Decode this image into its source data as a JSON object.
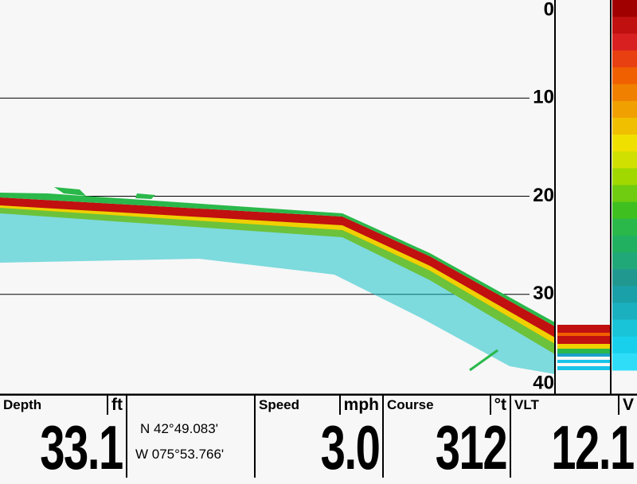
{
  "depth_scale": {
    "ticks": [
      0,
      10,
      20,
      30,
      40
    ],
    "max": 40
  },
  "readouts": {
    "depth": {
      "label": "Depth",
      "unit": "ft",
      "value": "33.1"
    },
    "position": {
      "lat": "N 42°49.083'",
      "lon": "W 075°53.766'"
    },
    "speed": {
      "label": "Speed",
      "unit": "mph",
      "value": "3.0"
    },
    "course": {
      "label": "Course",
      "unit": "°t",
      "value": "312"
    },
    "vlt": {
      "label": "VLT",
      "unit": "V",
      "value": "12.1"
    }
  }
}
